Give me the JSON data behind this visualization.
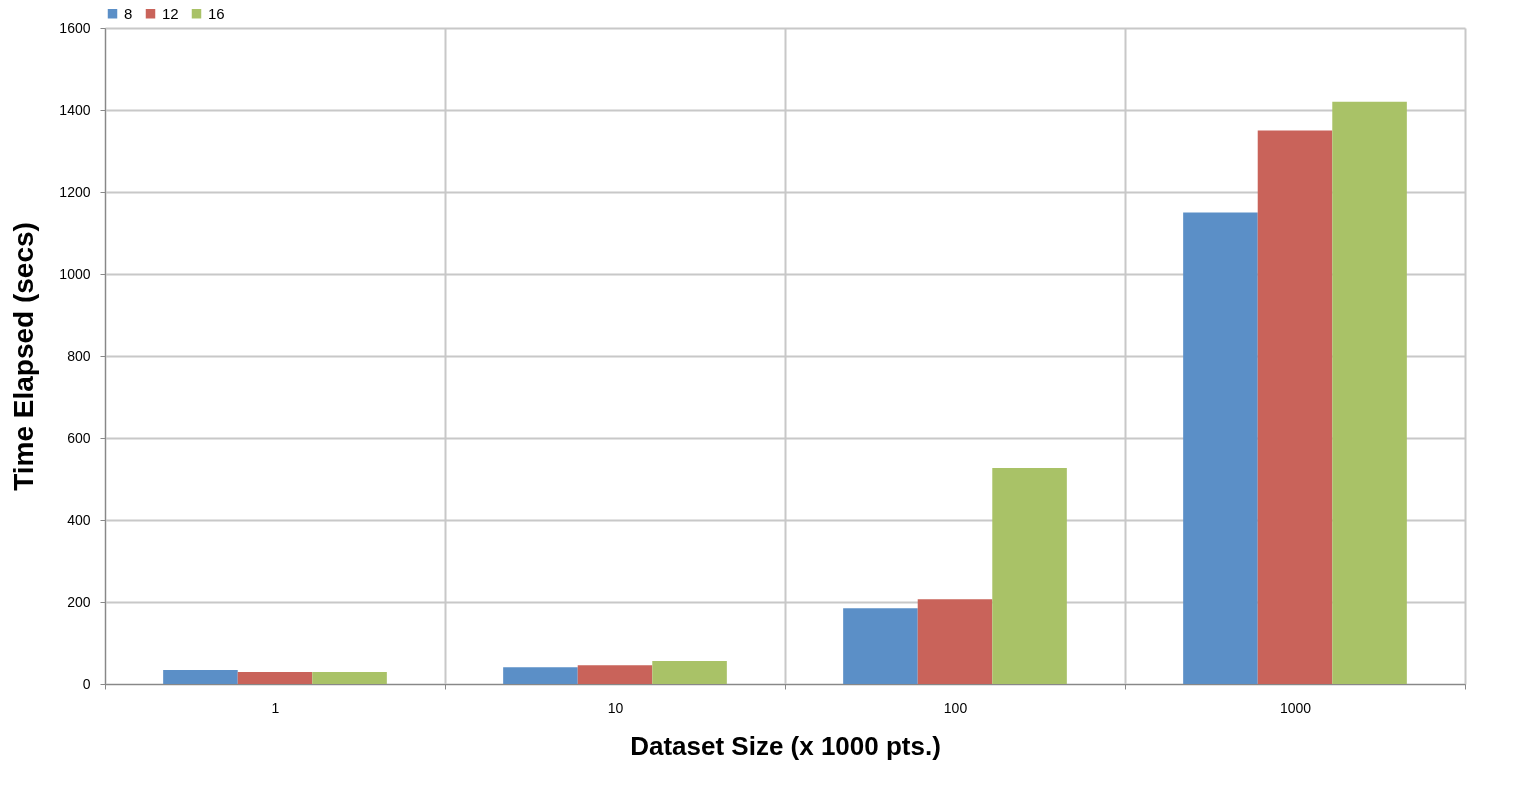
{
  "chart_data": {
    "type": "bar",
    "xlabel": "Dataset Size (x 1000 pts.)",
    "ylabel": "Time Elapsed (secs)",
    "categories": [
      "1",
      "10",
      "100",
      "1000"
    ],
    "series": [
      {
        "name": "8",
        "color": "#5b8fc7",
        "values": [
          34,
          41,
          185,
          1150
        ]
      },
      {
        "name": "12",
        "color": "#c9635a",
        "values": [
          29,
          46,
          207,
          1350
        ]
      },
      {
        "name": "16",
        "color": "#a9c267",
        "values": [
          29,
          56,
          527,
          1420
        ]
      }
    ],
    "ylim": [
      0,
      1600
    ],
    "yticks": [
      0,
      200,
      400,
      600,
      800,
      1000,
      1200,
      1400,
      1600
    ],
    "grid": true,
    "legend": "top"
  }
}
